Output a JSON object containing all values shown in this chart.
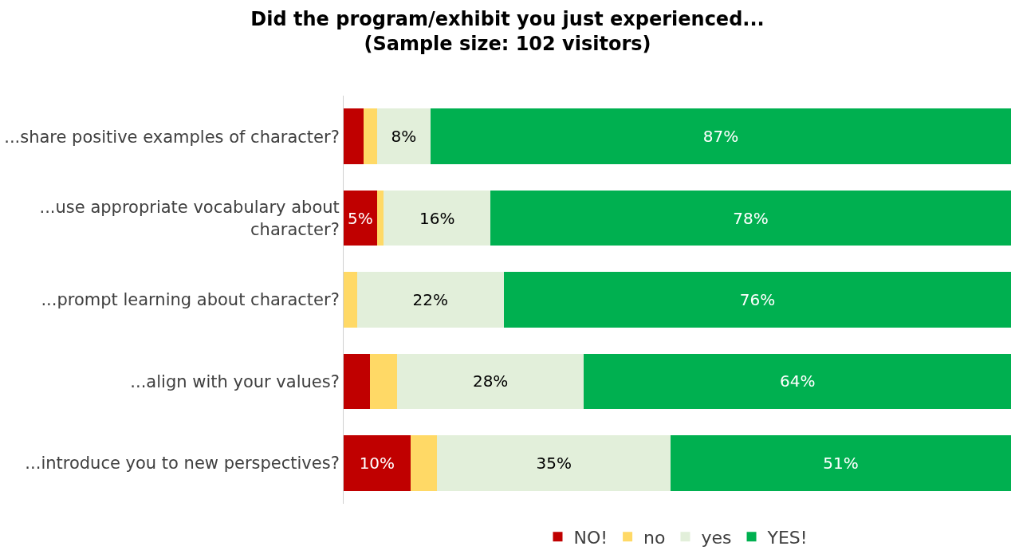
{
  "chart_data": {
    "type": "bar",
    "orientation": "horizontal",
    "stacked": true,
    "title": "Did the program/exhibit you just experienced...\n(Sample size: 102 visitors)",
    "categories": [
      "...share positive examples of character?",
      "...use appropriate vocabulary about character?",
      "...prompt learning about character?",
      "...align with your values?",
      "...introduce you to new perspectives?"
    ],
    "series": [
      {
        "name": "NO!",
        "color": "#c00000",
        "values": [
          3,
          5,
          0,
          4,
          10
        ],
        "value_labels": [
          null,
          "5%",
          null,
          null,
          "10%"
        ]
      },
      {
        "name": "no",
        "color": "#ffd966",
        "values": [
          2,
          1,
          2,
          4,
          4
        ],
        "value_labels": [
          null,
          null,
          null,
          null,
          null
        ]
      },
      {
        "name": "yes",
        "color": "#e2efda",
        "values": [
          8,
          16,
          22,
          28,
          35
        ],
        "value_labels": [
          "8%",
          "16%",
          "22%",
          "28%",
          "35%"
        ]
      },
      {
        "name": "YES!",
        "color": "#00b050",
        "values": [
          87,
          78,
          76,
          64,
          51
        ],
        "value_labels": [
          "87%",
          "78%",
          "76%",
          "64%",
          "51%"
        ]
      }
    ],
    "xlim": [
      0,
      100
    ],
    "tick_labels": "y",
    "legend": "bottom"
  }
}
